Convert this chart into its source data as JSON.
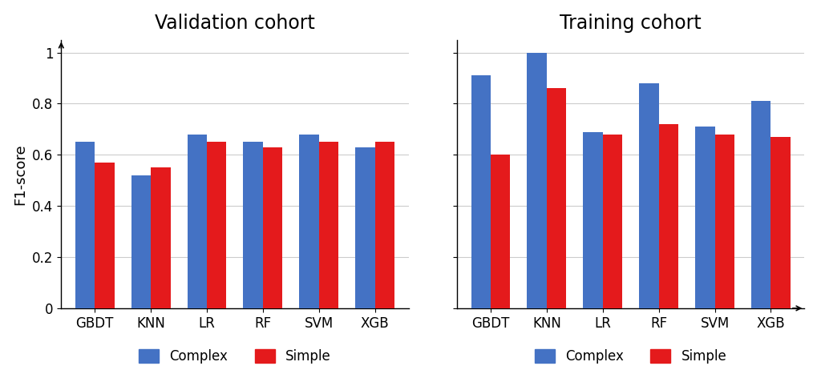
{
  "validation": {
    "title": "Validation cohort",
    "categories": [
      "GBDT",
      "KNN",
      "LR",
      "RF",
      "SVM",
      "XGB"
    ],
    "complex": [
      0.65,
      0.52,
      0.68,
      0.65,
      0.68,
      0.63
    ],
    "simple": [
      0.57,
      0.55,
      0.65,
      0.63,
      0.65,
      0.65
    ]
  },
  "training": {
    "title": "Training cohort",
    "categories": [
      "GBDT",
      "KNN",
      "LR",
      "RF",
      "SVM",
      "XGB"
    ],
    "complex": [
      0.91,
      1.0,
      0.69,
      0.88,
      0.71,
      0.81
    ],
    "simple": [
      0.6,
      0.86,
      0.68,
      0.72,
      0.68,
      0.67
    ]
  },
  "color_complex": "#4472C4",
  "color_simple": "#E41A1C",
  "ylabel": "F1-score",
  "ylim": [
    0,
    1.05
  ],
  "yticks": [
    0,
    0.2,
    0.4,
    0.6,
    0.8,
    1
  ],
  "ytick_labels": [
    "0",
    "0.2",
    "0.4",
    "0.6",
    "0.8",
    "1"
  ],
  "bar_width": 0.35,
  "title_fontsize": 17,
  "label_fontsize": 13,
  "tick_fontsize": 12,
  "legend_fontsize": 12,
  "background_color": "#ffffff",
  "grid_color": "#cccccc"
}
